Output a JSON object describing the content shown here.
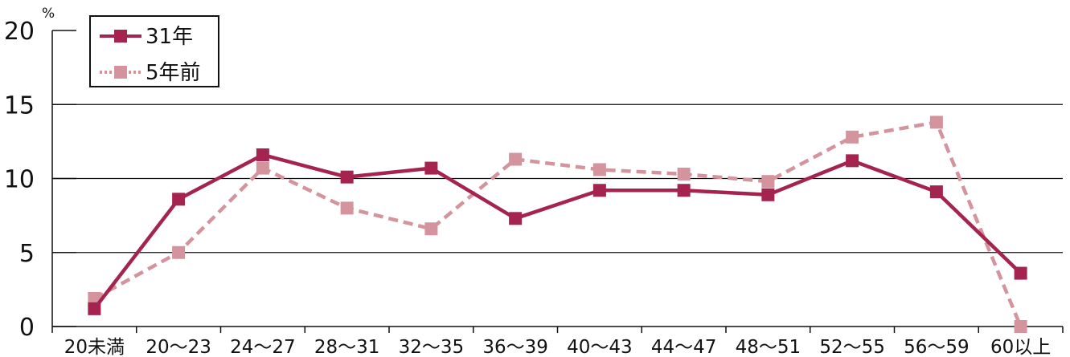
{
  "chart_data": {
    "type": "line",
    "categories": [
      "20未満",
      "20～23",
      "24～27",
      "28～31",
      "32～35",
      "36～39",
      "40～43",
      "44～47",
      "48～51",
      "52～55",
      "56～59",
      "60以上"
    ],
    "series": [
      {
        "name": "31年",
        "values": [
          1.2,
          8.6,
          11.6,
          10.1,
          10.7,
          7.3,
          9.2,
          9.2,
          8.9,
          11.2,
          9.1,
          3.6
        ],
        "color": "#a5234f",
        "style": "solid"
      },
      {
        "name": "5年前",
        "values": [
          1.9,
          5.0,
          10.7,
          8.0,
          6.6,
          11.3,
          10.6,
          10.3,
          9.8,
          12.8,
          13.8,
          0.0
        ],
        "color": "#d4949e",
        "style": "dashed"
      }
    ],
    "y_unit": "%",
    "ylim": [
      0,
      20
    ],
    "yticks": [
      "0",
      "5",
      "10",
      "15",
      "20"
    ],
    "grid": true,
    "legend": "top-left"
  }
}
